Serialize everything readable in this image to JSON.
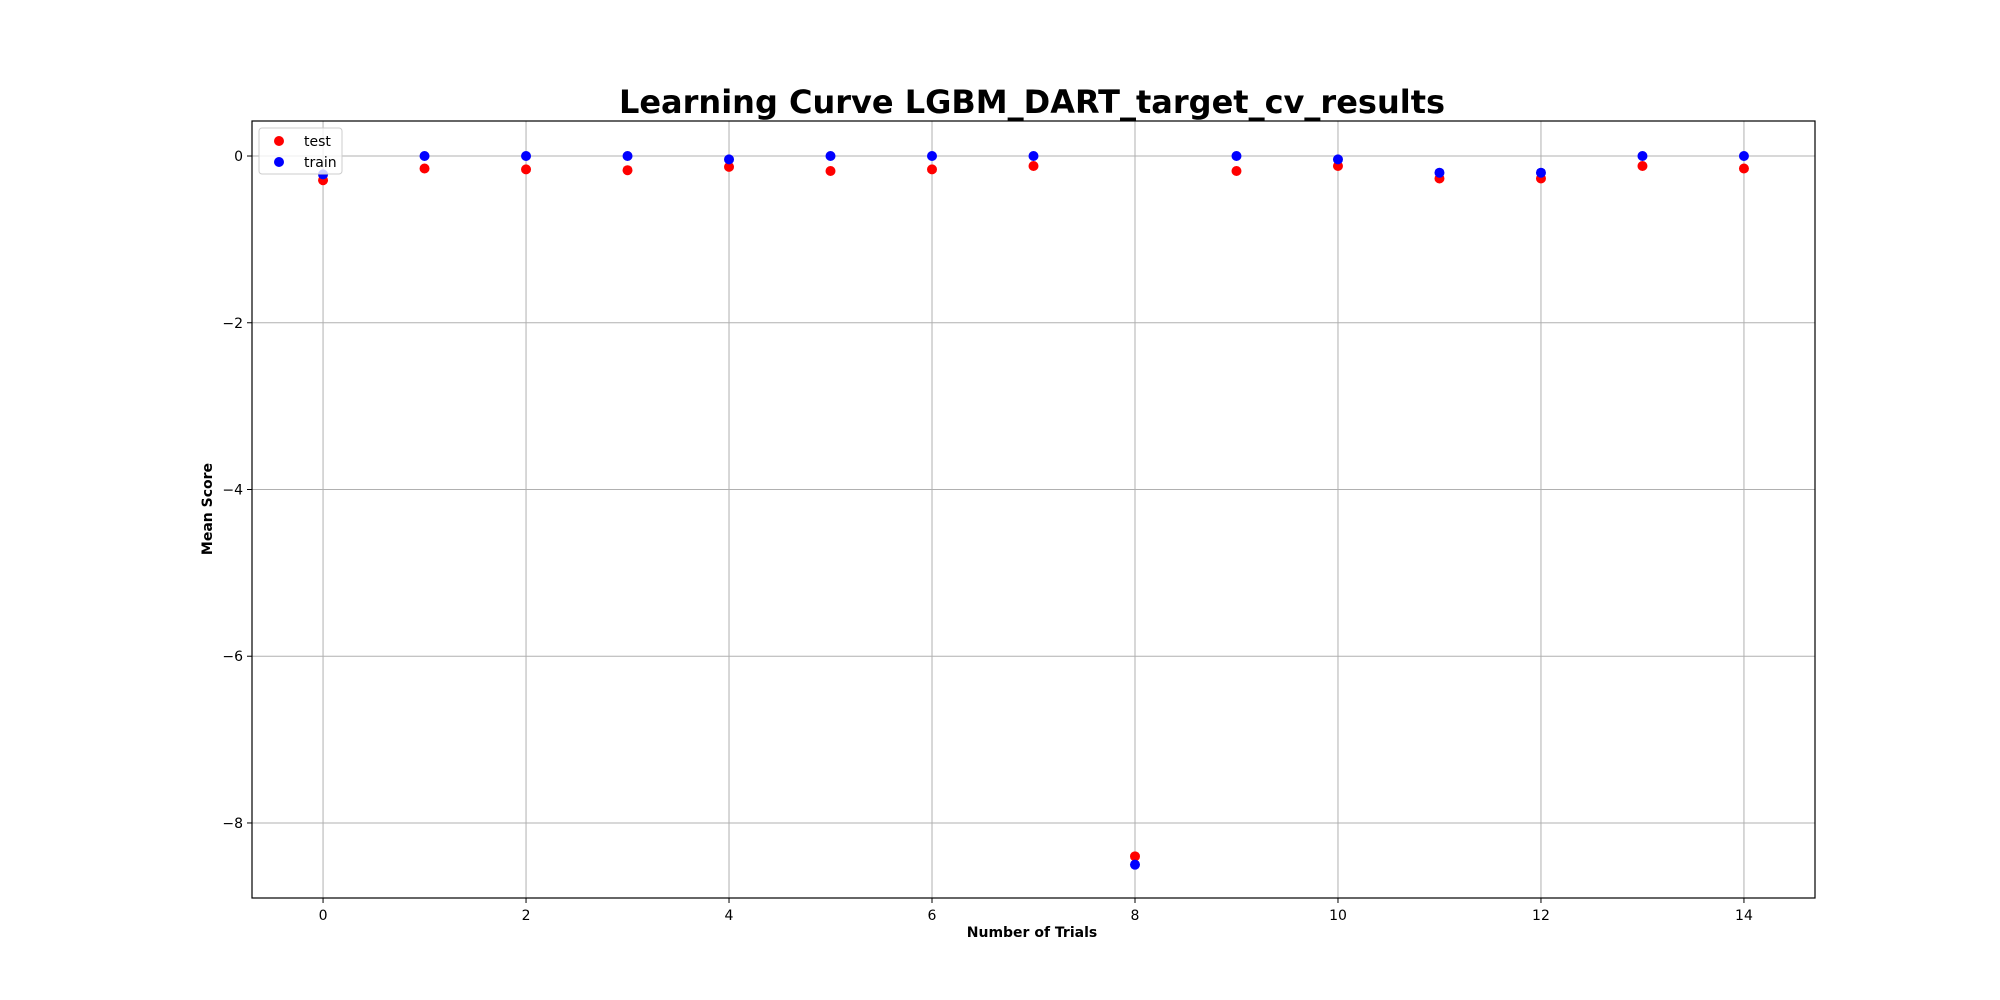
{
  "chart_data": {
    "type": "scatter",
    "title": "Learning Curve LGBM_DART_target_cv_results",
    "xlabel": "Number of Trials",
    "ylabel": "Mean Score",
    "xlim": [
      -0.7,
      14.7
    ],
    "ylim": [
      -8.9,
      0.42
    ],
    "x_ticks": [
      0,
      2,
      4,
      6,
      8,
      10,
      12,
      14
    ],
    "y_ticks": [
      0,
      -2,
      -4,
      -6,
      -8
    ],
    "x_tick_labels": [
      "0",
      "2",
      "4",
      "6",
      "8",
      "10",
      "12",
      "14"
    ],
    "y_tick_labels": [
      "0",
      "−2",
      "−4",
      "−6",
      "−8"
    ],
    "grid": true,
    "legend_position": "top-left",
    "series": [
      {
        "name": "test",
        "color": "#ff0000",
        "x": [
          0,
          1,
          2,
          3,
          4,
          5,
          6,
          7,
          8,
          9,
          10,
          11,
          12,
          13,
          14
        ],
        "y": [
          -0.29,
          -0.15,
          -0.16,
          -0.17,
          -0.13,
          -0.18,
          -0.16,
          -0.12,
          -8.4,
          -0.18,
          -0.12,
          -0.27,
          -0.27,
          -0.12,
          -0.15
        ]
      },
      {
        "name": "train",
        "color": "#0000ff",
        "x": [
          0,
          1,
          2,
          3,
          4,
          5,
          6,
          7,
          8,
          9,
          10,
          11,
          12,
          13,
          14
        ],
        "y": [
          -0.22,
          0.0,
          0.0,
          0.0,
          -0.04,
          0.0,
          0.0,
          0.0,
          -8.5,
          0.0,
          -0.04,
          -0.2,
          -0.2,
          0.0,
          0.0
        ]
      }
    ]
  }
}
